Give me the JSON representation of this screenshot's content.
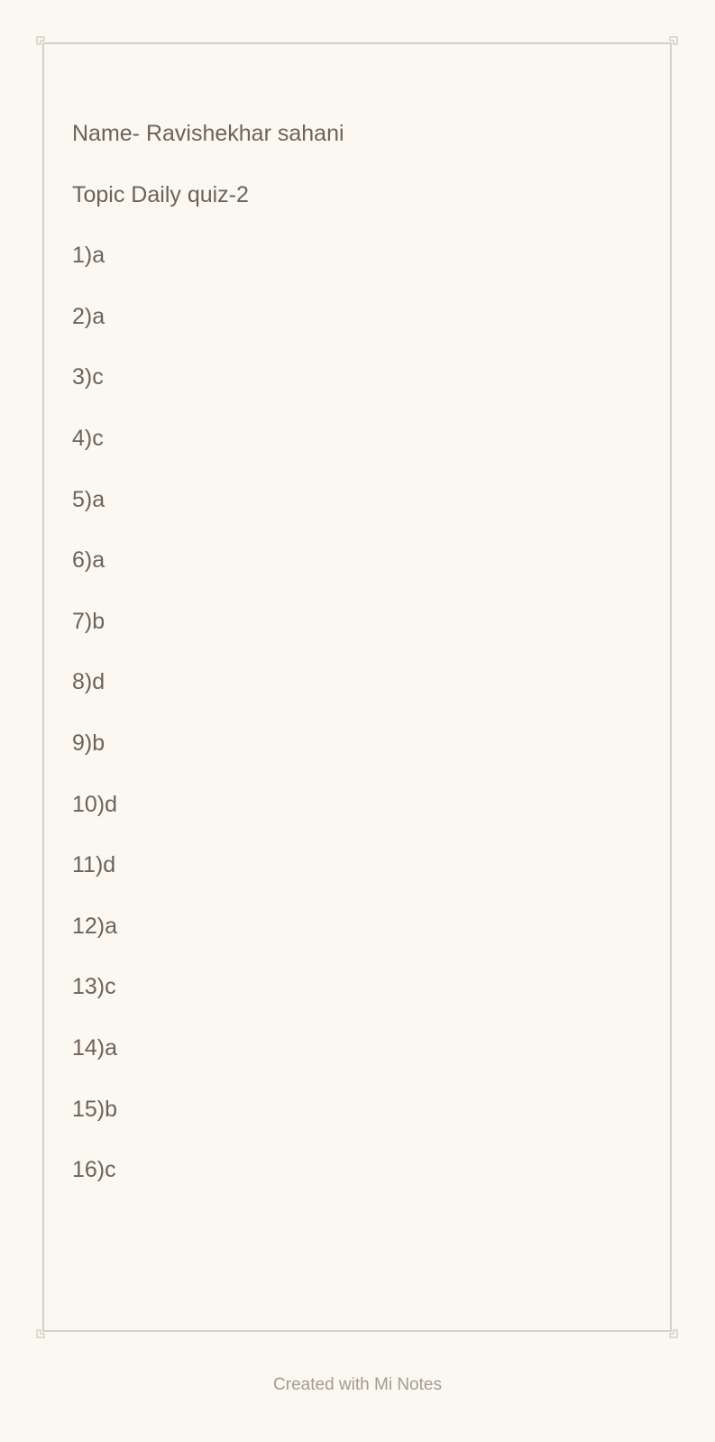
{
  "note": {
    "lines": [
      "Name- Ravishekhar sahani",
      "Topic Daily quiz-2",
      "1)a",
      "2)a",
      "3)c",
      "4)c",
      "5)a",
      "6)a",
      "7)b",
      "8)d",
      "9)b",
      "10)d",
      "11)d",
      "12)a",
      "13)c",
      "14)a",
      "15)b",
      "16)c"
    ]
  },
  "footer": {
    "text": "Created with Mi Notes"
  },
  "colors": {
    "background": "#faf8f1",
    "frame": "#d6d0c6",
    "text": "#6e6258",
    "footer_text": "#a49b91"
  }
}
